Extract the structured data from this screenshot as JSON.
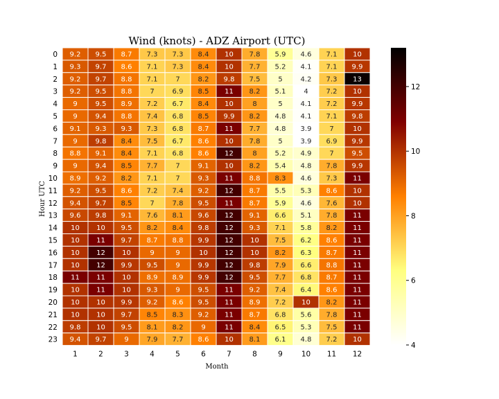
{
  "chart_data": {
    "type": "heatmap",
    "title": "Wind (knots) - ADZ Airport (UTC)",
    "xlabel": "Month",
    "ylabel": "Hour UTC",
    "x_categories": [
      "1",
      "2",
      "3",
      "4",
      "5",
      "6",
      "7",
      "8",
      "9",
      "10",
      "11",
      "12"
    ],
    "y_categories": [
      "0",
      "1",
      "2",
      "3",
      "4",
      "5",
      "6",
      "7",
      "8",
      "9",
      "10",
      "11",
      "12",
      "13",
      "14",
      "15",
      "16",
      "17",
      "18",
      "19",
      "20",
      "21",
      "22",
      "23"
    ],
    "colormap": "afmhot_r",
    "colorbar_range": [
      4,
      13.2
    ],
    "colorbar_ticks": [
      "4",
      "6",
      "8",
      "10",
      "12"
    ],
    "values": [
      [
        "9.2",
        "9.5",
        "8.7",
        "7.3",
        "7.3",
        "8.4",
        "10",
        "7.8",
        "5.9",
        "4.6",
        "7.1",
        "10"
      ],
      [
        "9.3",
        "9.7",
        "8.6",
        "7.1",
        "7.3",
        "8.4",
        "10",
        "7.7",
        "5.2",
        "4.1",
        "7.1",
        "9.9"
      ],
      [
        "9.2",
        "9.7",
        "8.8",
        "7.1",
        "7",
        "8.2",
        "9.8",
        "7.5",
        "5",
        "4.2",
        "7.3",
        "13"
      ],
      [
        "9.2",
        "9.5",
        "8.8",
        "7",
        "6.9",
        "8.5",
        "11",
        "8.2",
        "5.1",
        "4",
        "7.2",
        "10"
      ],
      [
        "9",
        "9.5",
        "8.9",
        "7.2",
        "6.7",
        "8.4",
        "10",
        "8",
        "5",
        "4.1",
        "7.2",
        "9.9"
      ],
      [
        "9",
        "9.4",
        "8.8",
        "7.4",
        "6.8",
        "8.5",
        "9.9",
        "8.2",
        "4.8",
        "4.1",
        "7.1",
        "9.8"
      ],
      [
        "9.1",
        "9.3",
        "9.3",
        "7.3",
        "6.8",
        "8.7",
        "11",
        "7.7",
        "4.8",
        "3.9",
        "7",
        "10"
      ],
      [
        "9",
        "9.8",
        "8.4",
        "7.5",
        "6.7",
        "8.6",
        "10",
        "7.8",
        "5",
        "3.9",
        "6.9",
        "9.9"
      ],
      [
        "8.8",
        "9.1",
        "8.4",
        "7.1",
        "6.8",
        "8.6",
        "12",
        "8",
        "5.2",
        "4.9",
        "7",
        "9.5"
      ],
      [
        "9",
        "9.4",
        "8.5",
        "7.7",
        "7",
        "9.1",
        "10",
        "8.2",
        "5.4",
        "4.8",
        "7.8",
        "9.9"
      ],
      [
        "8.9",
        "9.2",
        "8.2",
        "7.1",
        "7",
        "9.3",
        "11",
        "8.8",
        "8.3",
        "4.6",
        "7.3",
        "11"
      ],
      [
        "9.2",
        "9.5",
        "8.6",
        "7.2",
        "7.4",
        "9.2",
        "12",
        "8.7",
        "5.5",
        "5.3",
        "8.6",
        "10"
      ],
      [
        "9.4",
        "9.7",
        "8.5",
        "7",
        "7.8",
        "9.5",
        "11",
        "8.7",
        "5.9",
        "4.6",
        "7.6",
        "10"
      ],
      [
        "9.6",
        "9.8",
        "9.1",
        "7.6",
        "8.1",
        "9.6",
        "12",
        "9.1",
        "6.6",
        "5.1",
        "7.8",
        "11"
      ],
      [
        "10",
        "10",
        "9.5",
        "8.2",
        "8.4",
        "9.8",
        "12",
        "9.3",
        "7.1",
        "5.8",
        "8.2",
        "11"
      ],
      [
        "10",
        "11",
        "9.7",
        "8.7",
        "8.8",
        "9.9",
        "12",
        "10",
        "7.5",
        "6.2",
        "8.6",
        "11"
      ],
      [
        "10",
        "12",
        "10",
        "9",
        "9",
        "10",
        "12",
        "10",
        "8.2",
        "6.3",
        "8.7",
        "11"
      ],
      [
        "10",
        "12",
        "9.9",
        "9.5",
        "9",
        "9.9",
        "12",
        "9.8",
        "7.9",
        "6.6",
        "8.8",
        "11"
      ],
      [
        "11",
        "11",
        "10",
        "8.9",
        "8.9",
        "9.9",
        "12",
        "9.5",
        "7.7",
        "6.8",
        "8.7",
        "11"
      ],
      [
        "10",
        "11",
        "10",
        "9.3",
        "9",
        "9.5",
        "11",
        "9.2",
        "7.4",
        "6.4",
        "8.6",
        "11"
      ],
      [
        "10",
        "10",
        "9.9",
        "9.2",
        "8.6",
        "9.5",
        "11",
        "8.9",
        "7.2",
        "10",
        "8.2",
        "11"
      ],
      [
        "10",
        "10",
        "9.7",
        "8.5",
        "8.3",
        "9.2",
        "11",
        "8.7",
        "6.8",
        "5.6",
        "7.8",
        "11"
      ],
      [
        "9.8",
        "10",
        "9.5",
        "8.1",
        "8.2",
        "9",
        "11",
        "8.4",
        "6.5",
        "5.3",
        "7.5",
        "11"
      ],
      [
        "9.4",
        "9.7",
        "9",
        "7.9",
        "7.7",
        "8.6",
        "10",
        "8.1",
        "6.1",
        "4.8",
        "7.2",
        "10"
      ]
    ]
  }
}
